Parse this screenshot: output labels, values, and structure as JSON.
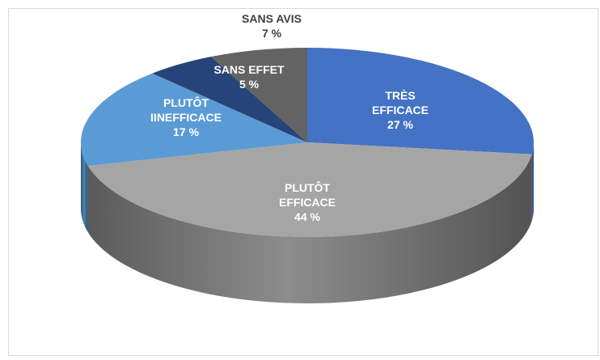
{
  "chart_data": {
    "type": "pie",
    "categories": [
      "TRÈS EFFICACE",
      "PLUTÔT EFFICACE",
      "PLUTÔT IINEFFICACE",
      "SANS EFFET",
      "SANS AVIS"
    ],
    "values": [
      27,
      44,
      17,
      5,
      7
    ],
    "value_labels": [
      "27 %",
      "44 %",
      "17 %",
      "5 %",
      "7 %"
    ],
    "colors": [
      "#4472c4",
      "#a5a5a5",
      "#5b9bd5",
      "#264478",
      "#636363"
    ],
    "label_colors": [
      "#ffffff",
      "#ffffff",
      "#ffffff",
      "#ffffff",
      "#404040"
    ]
  }
}
